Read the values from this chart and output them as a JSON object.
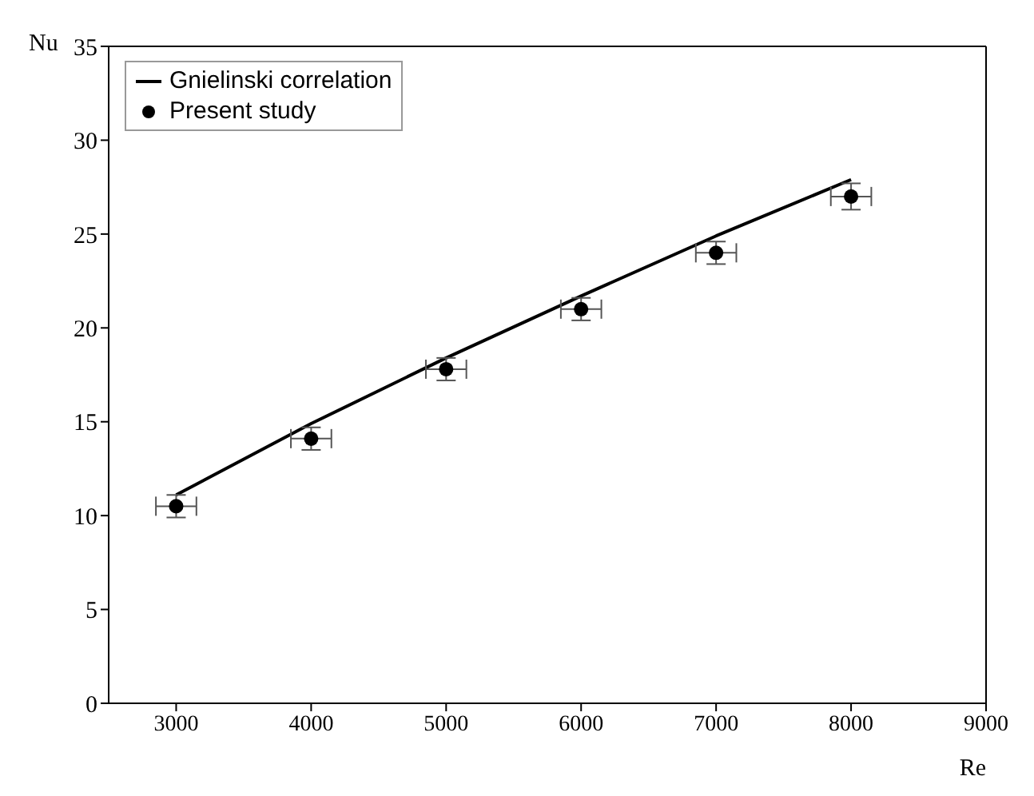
{
  "chart_data": {
    "type": "scatter",
    "xlabel": "Re",
    "ylabel": "Nu",
    "xlim": [
      2500,
      9000
    ],
    "xticks": [
      3000,
      4000,
      5000,
      6000,
      7000,
      8000,
      9000
    ],
    "ylim": [
      0,
      35
    ],
    "yticks": [
      0,
      5,
      10,
      15,
      20,
      25,
      30,
      35
    ],
    "grid": false,
    "legend": "top left",
    "series": [
      {
        "name": "Gnielinski correlation",
        "type": "line",
        "color": "#000000",
        "line_style": "solid",
        "marker": "none",
        "x": [
          3000,
          4000,
          5000,
          6000,
          7000,
          8000
        ],
        "values": [
          11.1,
          14.9,
          18.4,
          21.7,
          24.9,
          27.9
        ]
      },
      {
        "name": "Present study",
        "color": "#000000",
        "marker": "circle",
        "x": [
          3000,
          4000,
          5000,
          6000,
          7000,
          8000
        ],
        "values": [
          10.5,
          14.1,
          17.8,
          21.0,
          24.0,
          27.0
        ],
        "errors": [
          0.6,
          0.6,
          0.6,
          0.6,
          0.6,
          0.7
        ],
        "xerrors": [
          150,
          150,
          150,
          150,
          150,
          150
        ]
      }
    ]
  }
}
